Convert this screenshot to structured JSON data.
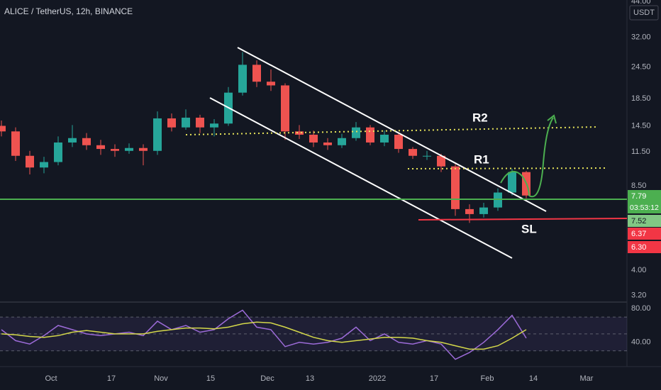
{
  "chart_data": [
    {
      "type": "candlestick",
      "title": "ALICE / TetherUS, 12h, BINANCE",
      "currency": "USDT",
      "log_scale": true,
      "up_color": "#26a69a",
      "down_color": "#ef5350",
      "xlim": [
        -14.4,
        162.4
      ],
      "xticks": [
        {
          "value": 0,
          "label": "Oct"
        },
        17,
        {
          "value": 31,
          "label": "Nov"
        },
        {
          "value": 45,
          "label": "15"
        },
        {
          "value": 61,
          "label": "Dec"
        },
        {
          "value": 73,
          "label": "13"
        },
        {
          "value": 92,
          "label": "2022"
        },
        {
          "value": 108,
          "label": "17"
        },
        {
          "value": 123,
          "label": "Feb"
        },
        {
          "value": 136,
          "label": "14"
        },
        {
          "value": 151,
          "label": "Mar"
        }
      ],
      "ylim": [
        3.03,
        44.56
      ],
      "yticks": [
        {
          "value": 44,
          "label": "44.00"
        },
        {
          "value": 32,
          "label": "32.00"
        },
        {
          "value": 24.5,
          "label": "24.50"
        },
        {
          "value": 18.5,
          "label": "18.50"
        },
        {
          "value": 14.5,
          "label": "14.50"
        },
        {
          "value": 11.5,
          "label": "11.50"
        },
        {
          "value": 8.5,
          "label": "8.50"
        },
        {
          "value": 4,
          "label": "4.00"
        },
        {
          "value": 3.2,
          "label": "3.20"
        }
      ],
      "x": [
        -14,
        -10,
        -6,
        -2,
        2,
        6,
        10,
        14,
        18,
        22,
        26,
        30,
        34,
        38,
        42,
        46,
        50,
        54,
        58,
        62,
        66,
        70,
        74,
        78,
        82,
        86,
        90,
        94,
        98,
        102,
        106,
        110,
        114,
        118,
        122,
        126,
        130,
        134
      ],
      "open": [
        14.5,
        13.8,
        11.1,
        10.0,
        10.5,
        12.5,
        13.0,
        12.2,
        11.8,
        11.6,
        11.9,
        11.6,
        15.5,
        14.3,
        15.6,
        14.3,
        14.8,
        19.5,
        25.0,
        21.5,
        20.8,
        13.8,
        13.4,
        12.5,
        12.2,
        13.0,
        14.3,
        12.5,
        13.4,
        11.8,
        11.1,
        11.1,
        10.1,
        6.9,
        6.6,
        7.0,
        8.0,
        9.6
      ],
      "high": [
        15.2,
        14.3,
        11.6,
        11.0,
        13.2,
        14.6,
        13.6,
        12.8,
        12.3,
        12.4,
        12.3,
        16.5,
        16.2,
        16.8,
        16.0,
        15.4,
        20.5,
        28.0,
        26.0,
        24.0,
        21.2,
        14.6,
        13.9,
        13.0,
        13.5,
        15.0,
        14.6,
        13.9,
        13.7,
        12.0,
        11.6,
        11.3,
        10.3,
        7.2,
        7.3,
        8.3,
        9.9,
        9.7
      ],
      "low": [
        13.2,
        10.6,
        9.4,
        9.5,
        10.2,
        12.0,
        11.7,
        11.2,
        11.0,
        11.3,
        10.2,
        11.2,
        13.8,
        14.0,
        13.6,
        13.2,
        14.5,
        19.0,
        20.5,
        19.8,
        12.8,
        12.9,
        12.0,
        11.7,
        11.9,
        12.7,
        12.2,
        12.1,
        11.4,
        10.8,
        10.7,
        9.6,
        6.5,
        6.1,
        6.4,
        6.8,
        7.8,
        7.6
      ],
      "close": [
        13.8,
        11.1,
        10.0,
        10.5,
        12.5,
        13.0,
        12.2,
        11.8,
        11.6,
        11.9,
        11.6,
        15.5,
        14.3,
        15.6,
        14.3,
        14.8,
        19.5,
        25.0,
        21.5,
        20.8,
        13.8,
        13.4,
        12.5,
        12.2,
        13.0,
        14.3,
        12.5,
        13.4,
        11.8,
        11.1,
        11.1,
        10.1,
        6.9,
        6.6,
        7.0,
        8.0,
        9.6,
        7.79
      ],
      "price_labels": [
        {
          "value": 7.79,
          "label": "7.79",
          "color": "#4caf50",
          "text_color": "#ffffff",
          "countdown": "03:53:12"
        },
        {
          "value": 7.52,
          "label": "7.52",
          "color": "#81c784",
          "text_color": "#131722"
        },
        {
          "value": 6.37,
          "label": "6.37",
          "color": "#f23645",
          "text_color": "#ffffff"
        },
        {
          "value": 6.3,
          "label": "6.30",
          "color": "#f23645",
          "text_color": "#ffffff"
        }
      ],
      "annotations": [
        "R2",
        "R1",
        "SL"
      ]
    },
    {
      "type": "line",
      "xlim": [
        -14.4,
        162.4
      ],
      "ylim": [
        13,
        86
      ],
      "yticks": [
        {
          "value": 80,
          "label": "80.00"
        },
        {
          "value": 40,
          "label": "40.00"
        }
      ],
      "levels": [
        70,
        50,
        30
      ],
      "x": [
        -14,
        -10,
        -6,
        -2,
        2,
        6,
        10,
        14,
        18,
        22,
        26,
        30,
        34,
        38,
        42,
        46,
        50,
        54,
        58,
        62,
        66,
        70,
        74,
        78,
        82,
        86,
        90,
        94,
        98,
        102,
        106,
        110,
        114,
        118,
        122,
        126,
        130,
        134
      ],
      "series": [
        {
          "color": "#9c6bd8",
          "values": [
            55,
            42,
            38,
            48,
            60,
            55,
            50,
            48,
            50,
            52,
            48,
            65,
            55,
            60,
            52,
            55,
            68,
            78,
            58,
            55,
            35,
            40,
            38,
            40,
            45,
            58,
            42,
            50,
            40,
            38,
            42,
            38,
            20,
            28,
            40,
            55,
            72,
            45
          ]
        },
        {
          "color": "#d4d84a",
          "values": [
            50,
            49,
            47,
            46,
            48,
            52,
            54,
            52,
            50,
            50,
            50,
            53,
            55,
            57,
            57,
            56,
            58,
            62,
            64,
            63,
            58,
            52,
            46,
            42,
            40,
            42,
            44,
            46,
            46,
            45,
            42,
            40,
            36,
            32,
            32,
            36,
            45,
            55
          ]
        }
      ]
    }
  ]
}
